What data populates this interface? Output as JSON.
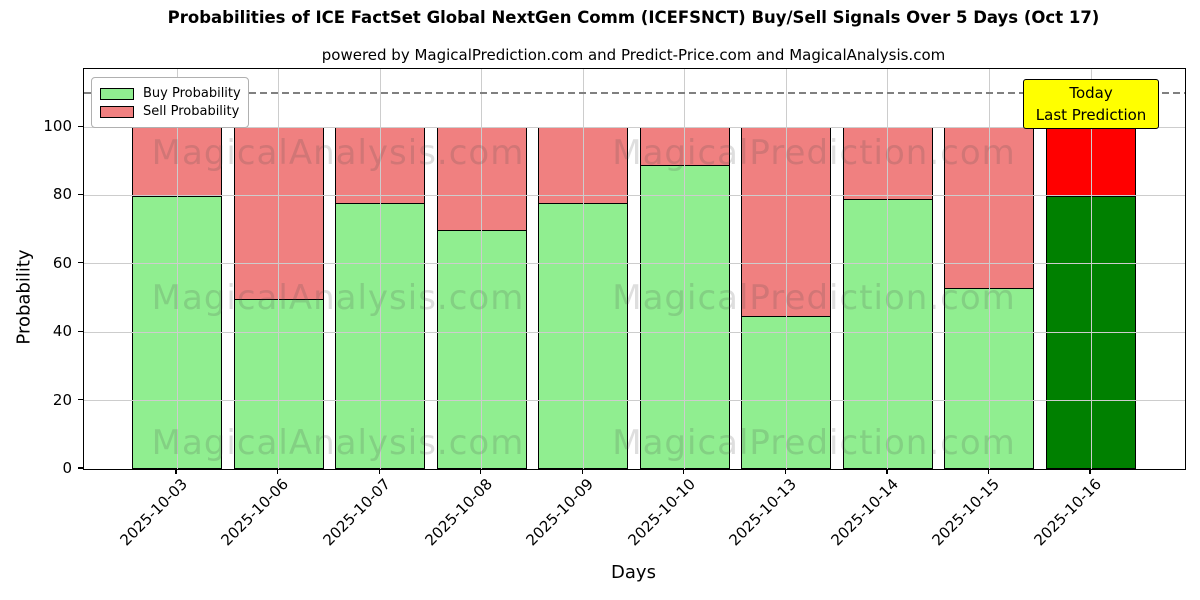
{
  "title": "Probabilities of ICE FactSet Global NextGen Comm (ICEFSNCT) Buy/Sell Signals Over 5 Days (Oct 17)",
  "subtitle": "powered by MagicalPrediction.com and Predict-Price.com and MagicalAnalysis.com",
  "chart_data": {
    "type": "bar",
    "stacked": true,
    "categories": [
      "2025-10-03",
      "2025-10-06",
      "2025-10-07",
      "2025-10-08",
      "2025-10-09",
      "2025-10-10",
      "2025-10-13",
      "2025-10-14",
      "2025-10-15",
      "2025-10-16"
    ],
    "series": [
      {
        "name": "Buy Probability",
        "values": [
          80,
          50,
          78,
          70,
          78,
          89,
          45,
          79,
          53,
          80
        ],
        "color": "#90EE90",
        "today_color": "#008000"
      },
      {
        "name": "Sell Probability",
        "values": [
          20,
          50,
          22,
          30,
          22,
          11,
          55,
          21,
          47,
          20
        ],
        "color": "#F08080",
        "today_color": "#FF0000"
      }
    ],
    "xlabel": "Days",
    "ylabel": "Probability",
    "yticks": [
      0,
      20,
      40,
      60,
      80,
      100
    ],
    "ylim": [
      0,
      117
    ],
    "grid": true,
    "legend_position": "top-left",
    "bar_edge_color": "#000000",
    "threshold_line": {
      "y": 110,
      "style": "dashed",
      "color": "#808080"
    },
    "today_index": 9
  },
  "legend": {
    "items": [
      {
        "label": "Buy Probability",
        "color": "#90EE90"
      },
      {
        "label": "Sell Probability",
        "color": "#F08080"
      }
    ]
  },
  "annotation": {
    "line1": "Today",
    "line2": "Last Prediction",
    "bg_color": "#FFFF00"
  },
  "watermarks": {
    "left": "MagicalAnalysis.com",
    "right": "MagicalPrediction.com"
  }
}
